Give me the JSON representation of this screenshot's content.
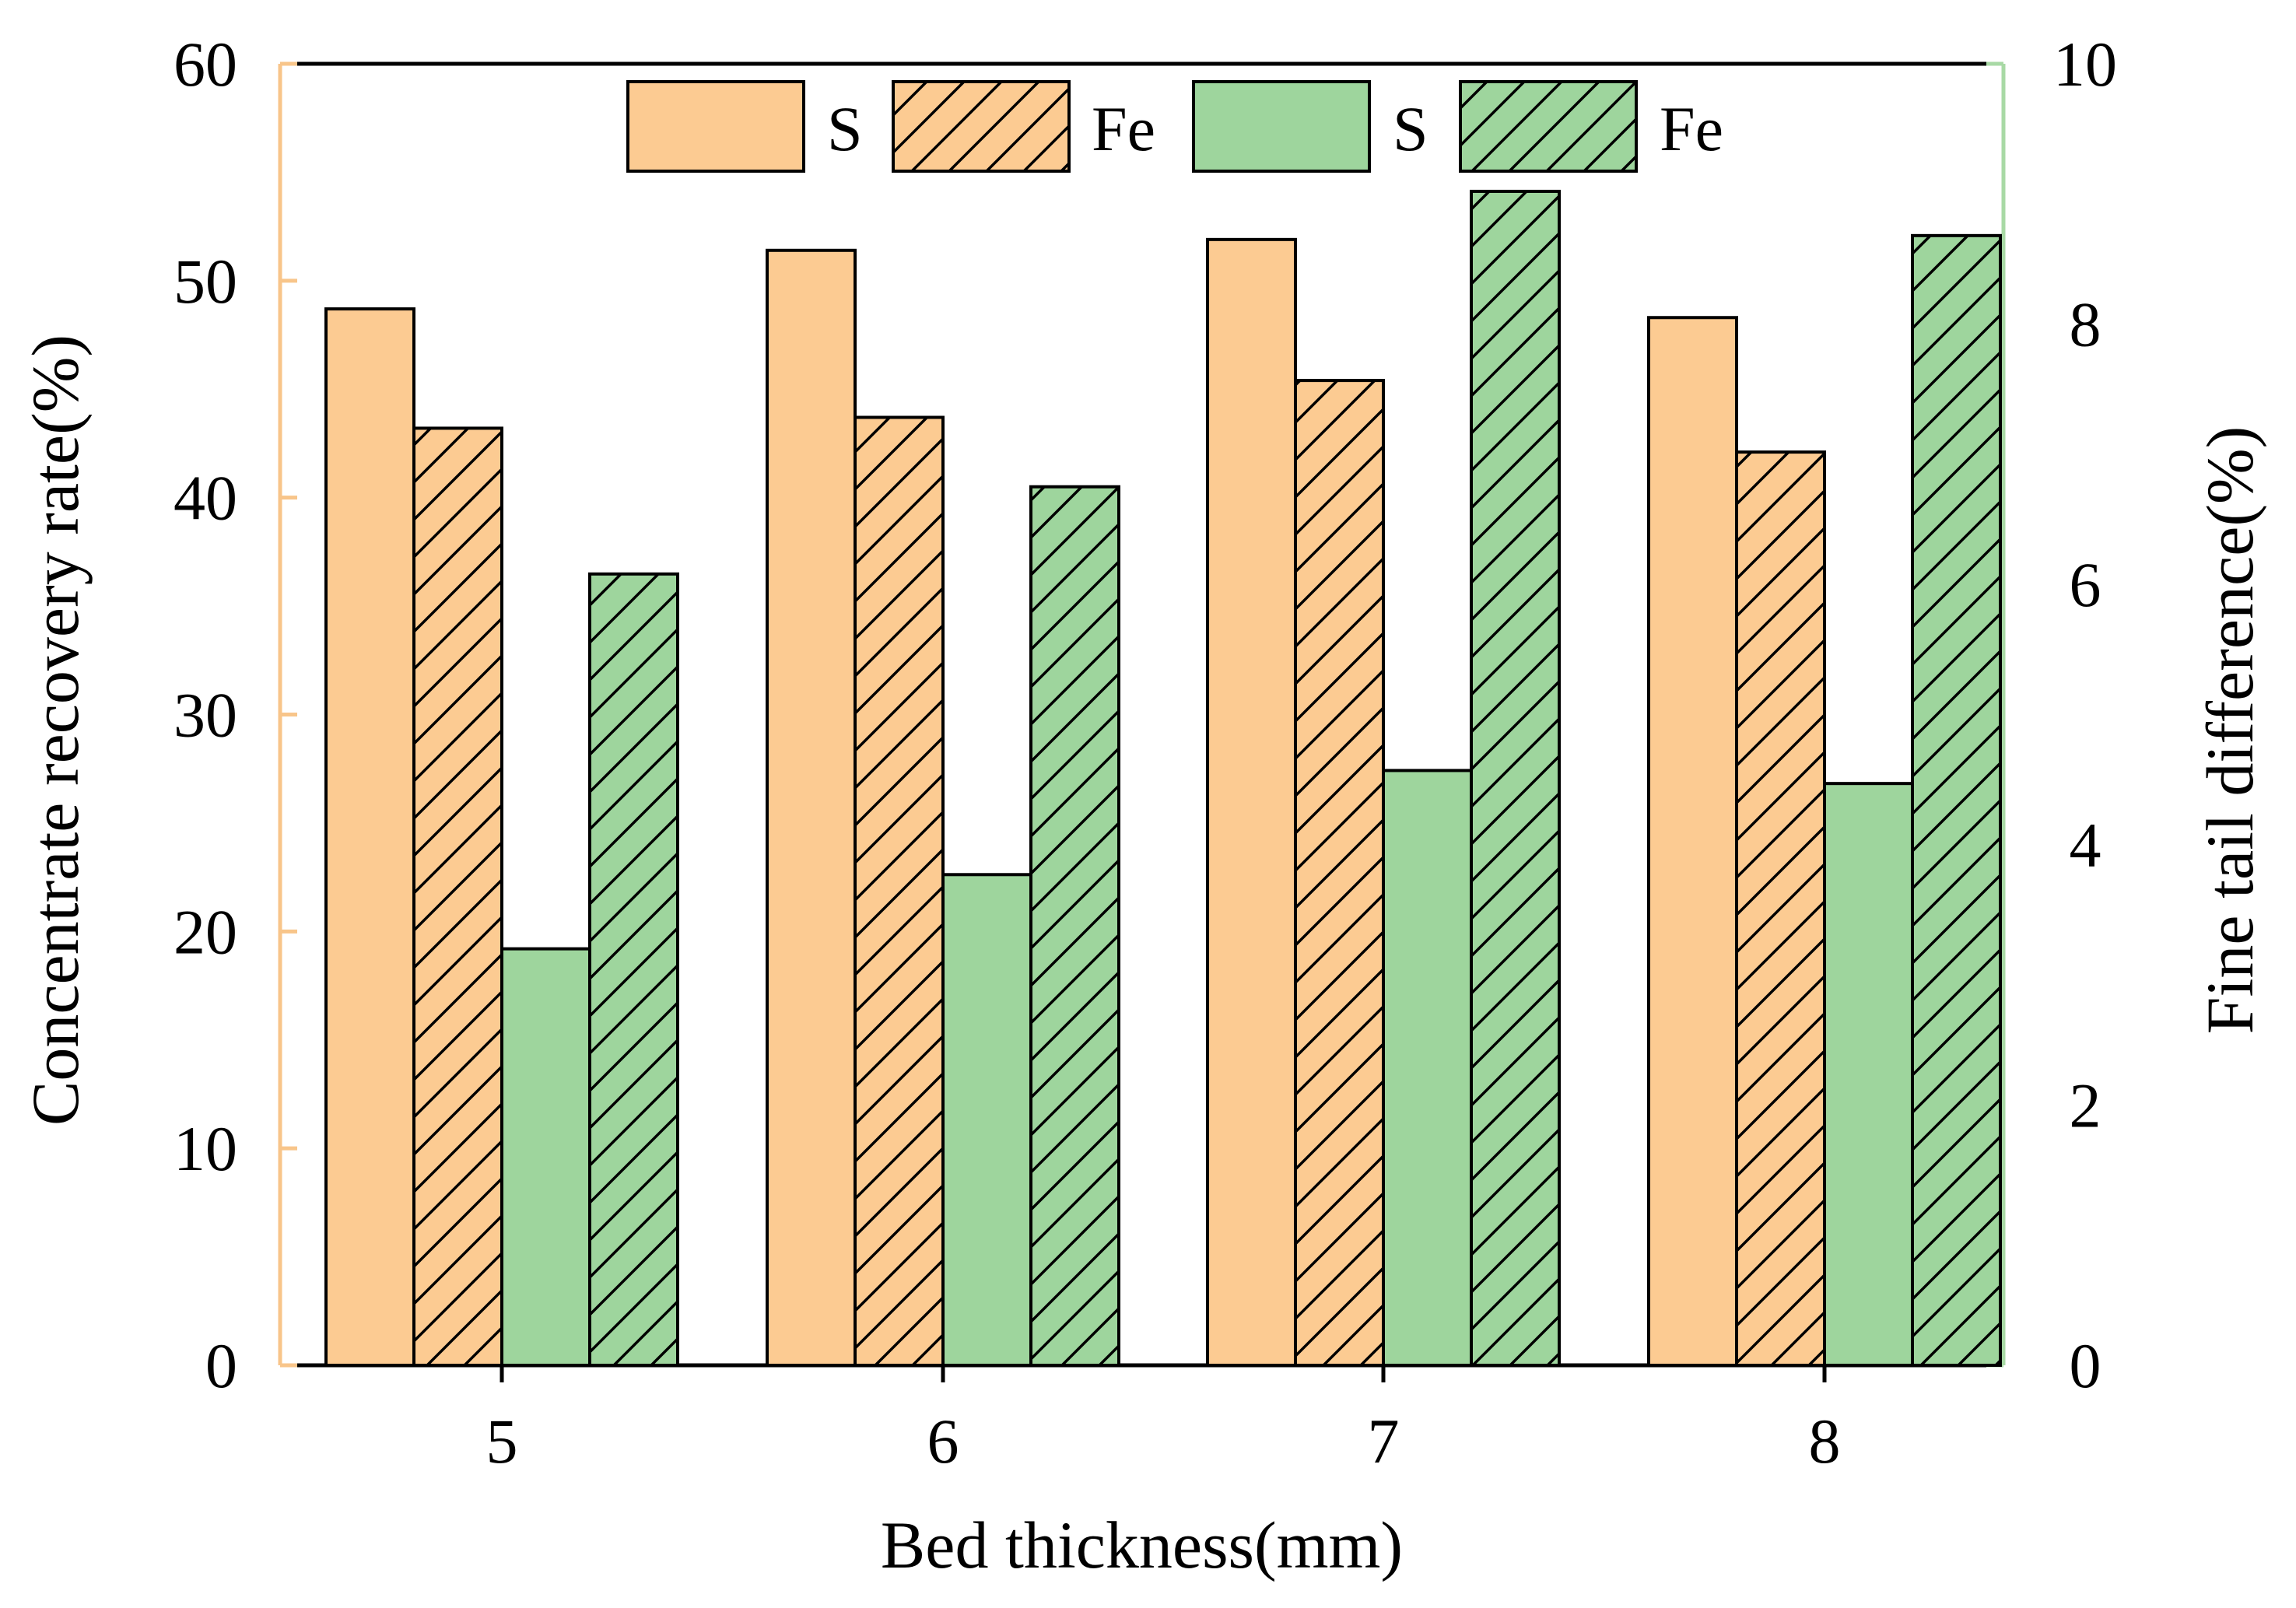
{
  "chart_data": {
    "type": "bar",
    "title": "",
    "xlabel": "Bed thickness(mm)",
    "ylabel_left": "Concentrate recovery rate(%)",
    "ylabel_right": "Fine tail difference(%)",
    "categories": [
      "5",
      "6",
      "7",
      "8"
    ],
    "ylim_left": [
      0,
      60
    ],
    "yticks_left": [
      "0",
      "10",
      "20",
      "30",
      "40",
      "50",
      "60"
    ],
    "ylim_right": [
      0,
      10
    ],
    "yticks_right": [
      "0",
      "2",
      "4",
      "6",
      "8",
      "10"
    ],
    "grid": false,
    "legend_position": "top",
    "series": [
      {
        "name": "S",
        "axis": "left",
        "color": "#FCCB92",
        "pattern": "solid",
        "values": [
          48.7,
          51.4,
          51.9,
          48.3
        ]
      },
      {
        "name": "Fe",
        "axis": "left",
        "color": "#FCCB92",
        "pattern": "hatch",
        "values": [
          43.2,
          43.7,
          45.4,
          42.1
        ]
      },
      {
        "name": "S",
        "axis": "right",
        "color": "#9ED59D",
        "pattern": "solid",
        "values": [
          3.2,
          3.77,
          4.57,
          4.47
        ]
      },
      {
        "name": "Fe",
        "axis": "right",
        "color": "#9ED59D",
        "pattern": "hatch",
        "values": [
          6.08,
          6.75,
          9.02,
          8.68
        ]
      }
    ],
    "colors": {
      "left_axis": "#F8C58A",
      "right_axis": "#A8D9A5",
      "frame": "#000000"
    }
  }
}
